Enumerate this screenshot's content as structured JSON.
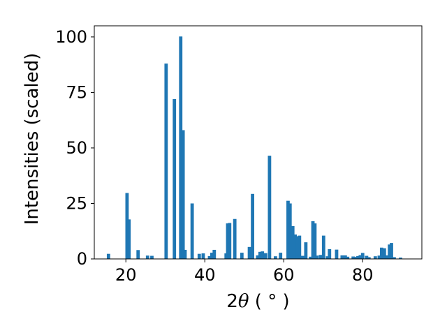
{
  "chart_data": {
    "type": "bar",
    "xlabel": "2θ (°)",
    "xlabel_parts": {
      "prefix": "2",
      "symbol": "θ",
      "unit": " ( ° )"
    },
    "ylabel": "Intensities (scaled)",
    "xlim": [
      12,
      95
    ],
    "ylim": [
      0,
      105
    ],
    "x_ticks": [
      20,
      40,
      60,
      80
    ],
    "y_ticks": [
      0,
      25,
      50,
      75,
      100
    ],
    "grid": false,
    "bar_color": "#1f77b4",
    "bar_width": 0.85,
    "x": [
      15.6,
      20.3,
      20.8,
      23.1,
      25.5,
      26.6,
      30.2,
      32.3,
      33.9,
      34.5,
      35.0,
      36.8,
      38.6,
      39.6,
      41.2,
      41.8,
      42.4,
      45.4,
      45.8,
      46.3,
      47.6,
      49.4,
      51.3,
      52.1,
      53.4,
      54.0,
      54.6,
      55.4,
      56.4,
      57.9,
      59.2,
      61.1,
      61.6,
      62.3,
      62.9,
      63.4,
      64.0,
      64.8,
      65.6,
      66.8,
      67.4,
      67.9,
      68.4,
      69.3,
      70.1,
      71.1,
      71.6,
      73.4,
      74.8,
      75.6,
      76.2,
      77.6,
      78.2,
      78.8,
      79.4,
      80.0,
      81.0,
      81.6,
      83.2,
      84.2,
      84.8,
      85.5,
      86.2,
      86.8,
      87.3,
      88.0,
      89.6
    ],
    "values": [
      2.3,
      29.7,
      17.8,
      4.0,
      1.5,
      1.4,
      88.0,
      72.0,
      100.2,
      58.0,
      4.1,
      25.0,
      2.3,
      2.5,
      1.3,
      2.8,
      4.1,
      2.5,
      16.0,
      16.2,
      18.0,
      2.8,
      5.4,
      29.3,
      1.6,
      3.2,
      3.4,
      2.6,
      46.5,
      1.2,
      2.8,
      26.2,
      25.0,
      14.8,
      11.0,
      10.2,
      10.5,
      1.4,
      7.5,
      1.0,
      17.0,
      16.0,
      1.5,
      1.8,
      10.5,
      1.2,
      4.4,
      4.2,
      1.6,
      1.6,
      1.0,
      1.1,
      0.9,
      1.3,
      1.7,
      2.7,
      1.4,
      0.8,
      1.2,
      1.5,
      5.1,
      4.8,
      1.6,
      6.5,
      7.2,
      0.8,
      0.6
    ]
  }
}
